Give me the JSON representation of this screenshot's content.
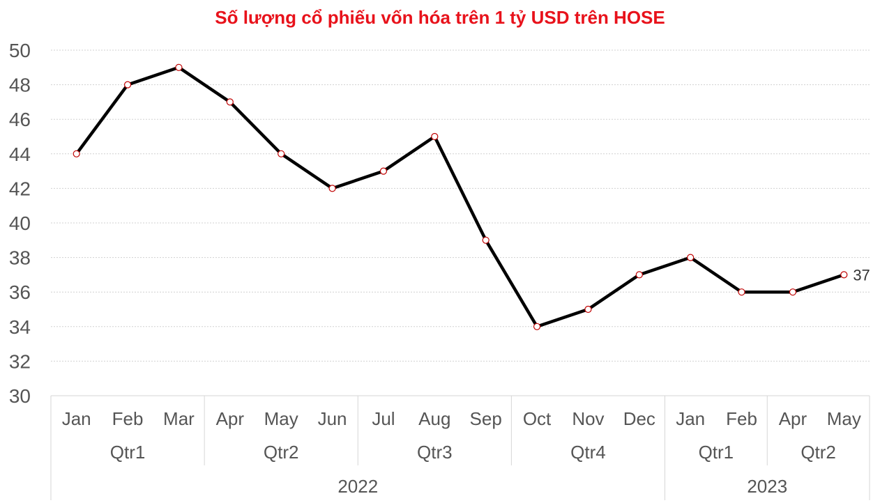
{
  "chart_data": {
    "type": "line",
    "title": "Số lượng cổ phiếu vốn hóa trên 1 tỷ USD trên HOSE",
    "categories": [
      "Jan",
      "Feb",
      "Mar",
      "Apr",
      "May",
      "Jun",
      "Jul",
      "Aug",
      "Sep",
      "Oct",
      "Nov",
      "Dec",
      "Jan",
      "Feb",
      "Apr",
      "May"
    ],
    "quarters": [
      {
        "label": "Qtr1",
        "span": 3
      },
      {
        "label": "Qtr2",
        "span": 3
      },
      {
        "label": "Qtr3",
        "span": 3
      },
      {
        "label": "Qtr4",
        "span": 3
      },
      {
        "label": "Qtr1",
        "span": 2
      },
      {
        "label": "Qtr2",
        "span": 2
      }
    ],
    "years": [
      {
        "label": "2022",
        "span": 12
      },
      {
        "label": "2023",
        "span": 4
      }
    ],
    "series": [
      {
        "values": [
          44,
          48,
          49,
          47,
          44,
          42,
          43,
          45,
          39,
          34,
          35,
          37,
          38,
          36,
          36,
          37
        ]
      }
    ],
    "data_labels": [
      {
        "index": 15,
        "text": "37"
      }
    ],
    "ylim": [
      30,
      50
    ],
    "yticks": [
      "30",
      "32",
      "34",
      "36",
      "38",
      "40",
      "42",
      "44",
      "46",
      "48",
      "50"
    ],
    "grid": true,
    "legend": "none",
    "colors": {
      "title": "#e8121b",
      "line": "#000000",
      "marker_edge": "#c00000",
      "marker_fill": "#ffffff"
    }
  }
}
